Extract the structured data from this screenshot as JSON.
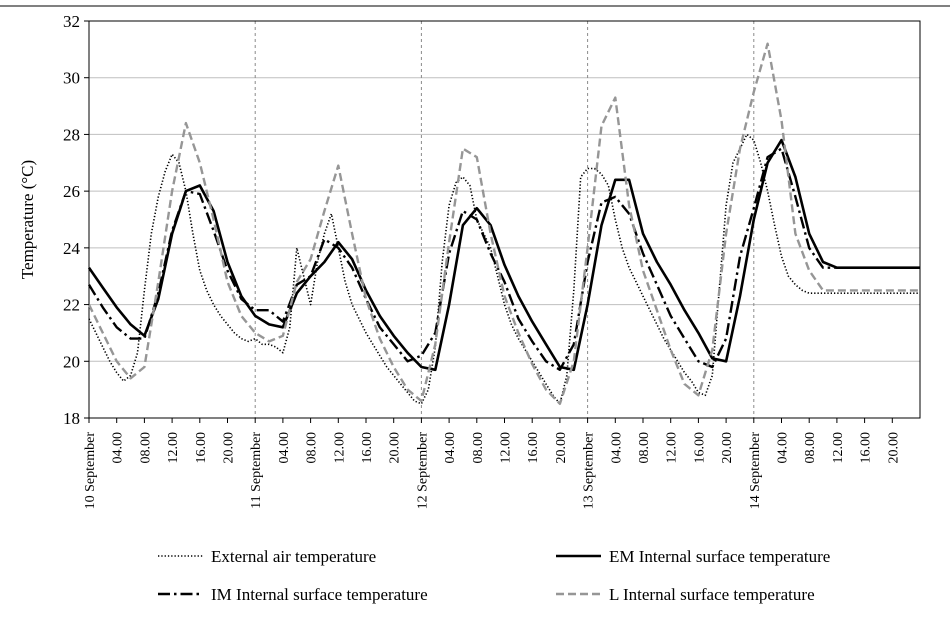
{
  "chart_data": {
    "type": "line",
    "ylabel": "Temperature (°C)",
    "xlabel": "",
    "ylim": [
      18,
      32
    ],
    "yticks": [
      18,
      20,
      22,
      24,
      26,
      28,
      30,
      32
    ],
    "xlim_hours": [
      0,
      120
    ],
    "grid": {
      "horizontal": true,
      "day_separators": "dashed"
    },
    "legend": "bottom",
    "x_tick_labels": [
      "10 September",
      "04.00",
      "08.00",
      "12.00",
      "16.00",
      "20.00",
      "11 September",
      "04.00",
      "08.00",
      "12.00",
      "16.00",
      "20.00",
      "12 September",
      "04.00",
      "08.00",
      "12.00",
      "16.00",
      "20.00",
      "13 September",
      "04.00",
      "08.00",
      "12.00",
      "16.00",
      "20.00",
      "14 September",
      "04.00",
      "08.00",
      "12.00",
      "16.00",
      "20.00"
    ],
    "series": [
      {
        "name": "External air temperature",
        "color": "#000000",
        "style": "dotted",
        "x": [
          0,
          1,
          2,
          3,
          4,
          5,
          6,
          7,
          8,
          9,
          10,
          11,
          12,
          13,
          14,
          15,
          16,
          17,
          18,
          19,
          20,
          21,
          22,
          23,
          24,
          25,
          26,
          27,
          28,
          29,
          30,
          31,
          32,
          33,
          34,
          35,
          36,
          37,
          38,
          39,
          40,
          41,
          42,
          43,
          44,
          45,
          46,
          47,
          48,
          49,
          50,
          51,
          52,
          53,
          54,
          55,
          56,
          57,
          58,
          59,
          60,
          61,
          62,
          63,
          64,
          65,
          66,
          67,
          68,
          69,
          70,
          71,
          72,
          73,
          74,
          75,
          76,
          77,
          78,
          79,
          80,
          81,
          82,
          83,
          84,
          85,
          86,
          87,
          88,
          89,
          90,
          91,
          92,
          93,
          94,
          95,
          96,
          97,
          98,
          99,
          100,
          101,
          102,
          103,
          104,
          105,
          106,
          107,
          108,
          109,
          110,
          111,
          112,
          113,
          114,
          115,
          116,
          117,
          118,
          119,
          120
        ],
        "y": [
          21.5,
          21.0,
          20.5,
          20.0,
          19.6,
          19.3,
          19.5,
          20.3,
          22.5,
          24.5,
          25.8,
          26.7,
          27.3,
          27.0,
          26.0,
          24.5,
          23.2,
          22.5,
          22.0,
          21.6,
          21.3,
          21.0,
          20.8,
          20.7,
          20.8,
          20.6,
          20.6,
          20.5,
          20.3,
          21.2,
          24.0,
          23.0,
          22.0,
          23.5,
          24.5,
          25.2,
          24.0,
          22.8,
          22.0,
          21.5,
          21.0,
          20.6,
          20.2,
          19.8,
          19.5,
          19.2,
          18.9,
          18.6,
          18.5,
          19.0,
          20.5,
          23.5,
          25.5,
          26.3,
          26.5,
          26.2,
          25.0,
          24.5,
          24.0,
          23.0,
          22.0,
          21.3,
          20.8,
          20.4,
          20.0,
          19.6,
          19.2,
          18.8,
          18.5,
          19.5,
          22.5,
          26.5,
          26.8,
          26.8,
          26.6,
          26.2,
          25.0,
          24.0,
          23.3,
          22.8,
          22.3,
          21.8,
          21.3,
          20.8,
          20.4,
          20.0,
          19.6,
          19.3,
          18.9,
          18.8,
          19.5,
          22.5,
          25.5,
          27.0,
          27.5,
          28.0,
          27.8,
          27.0,
          26.0,
          24.8,
          23.7,
          23.0,
          22.7,
          22.5,
          22.4,
          22.4,
          22.4,
          22.4,
          22.4,
          22.4,
          22.4,
          22.4,
          22.4,
          22.4,
          22.4,
          22.4,
          22.4,
          22.4,
          22.4,
          22.4,
          22.4
        ]
      },
      {
        "name": "EM Internal surface temperature",
        "color": "#000000",
        "style": "solid",
        "x": [
          0,
          2,
          4,
          6,
          8,
          10,
          12,
          14,
          16,
          18,
          20,
          22,
          24,
          26,
          28,
          30,
          32,
          34,
          36,
          38,
          40,
          42,
          44,
          46,
          48,
          50,
          52,
          54,
          56,
          58,
          60,
          62,
          64,
          66,
          68,
          70,
          72,
          74,
          76,
          78,
          80,
          82,
          84,
          86,
          88,
          90,
          92,
          94,
          96,
          98,
          100,
          102,
          104,
          106,
          108,
          110,
          112,
          114,
          116,
          118,
          120
        ],
        "y": [
          23.3,
          22.6,
          21.9,
          21.3,
          20.9,
          22.2,
          24.5,
          26.0,
          26.2,
          25.3,
          23.5,
          22.3,
          21.6,
          21.3,
          21.2,
          22.4,
          23.0,
          23.5,
          24.2,
          23.6,
          22.5,
          21.6,
          20.9,
          20.3,
          19.8,
          19.7,
          22.0,
          24.8,
          25.4,
          24.8,
          23.4,
          22.3,
          21.4,
          20.6,
          19.8,
          19.7,
          22.0,
          24.8,
          26.4,
          26.4,
          24.5,
          23.5,
          22.7,
          21.8,
          21.0,
          20.1,
          20.0,
          22.3,
          25.0,
          27.0,
          27.8,
          26.5,
          24.5,
          23.5,
          23.3,
          23.3,
          23.3,
          23.3,
          23.3,
          23.3,
          23.3
        ]
      },
      {
        "name": "IM Internal surface temperature",
        "color": "#000000",
        "style": "dashdot",
        "x": [
          0,
          2,
          4,
          6,
          8,
          10,
          12,
          14,
          16,
          18,
          20,
          22,
          24,
          26,
          28,
          30,
          32,
          34,
          36,
          38,
          40,
          42,
          44,
          46,
          48,
          50,
          52,
          54,
          56,
          58,
          60,
          62,
          64,
          66,
          68,
          70,
          72,
          74,
          76,
          78,
          80,
          82,
          84,
          86,
          88,
          90,
          92,
          94,
          96,
          98,
          100,
          102,
          104,
          106,
          108,
          110,
          112,
          114,
          116,
          118,
          120
        ],
        "y": [
          22.7,
          21.9,
          21.2,
          20.8,
          20.8,
          22.4,
          24.6,
          26.0,
          25.9,
          24.6,
          23.2,
          22.2,
          21.8,
          21.8,
          21.4,
          22.7,
          23.0,
          24.3,
          24.0,
          23.3,
          22.2,
          21.2,
          20.6,
          20.0,
          20.2,
          21.0,
          23.8,
          25.3,
          25.0,
          23.8,
          22.8,
          21.5,
          20.7,
          20.0,
          19.7,
          20.6,
          23.5,
          25.6,
          25.8,
          25.2,
          23.8,
          22.7,
          21.6,
          20.8,
          20.0,
          19.8,
          20.8,
          23.7,
          25.4,
          27.2,
          27.5,
          25.8,
          24.0,
          23.3,
          23.3,
          23.3,
          23.3,
          23.3,
          23.3,
          23.3,
          23.3
        ]
      },
      {
        "name": "L Internal surface temperature",
        "color": "#969696",
        "style": "dashed",
        "x": [
          0,
          2,
          4,
          6,
          8,
          10,
          12,
          14,
          16,
          18,
          20,
          22,
          24,
          26,
          28,
          30,
          32,
          34,
          36,
          38,
          40,
          42,
          44,
          46,
          48,
          50,
          52,
          54,
          56,
          58,
          60,
          62,
          64,
          66,
          68,
          70,
          72,
          74,
          76,
          78,
          80,
          82,
          84,
          86,
          88,
          90,
          92,
          94,
          96,
          98,
          100,
          102,
          104,
          106,
          108,
          110,
          112,
          114,
          116,
          118,
          120
        ],
        "y": [
          22.0,
          21.0,
          20.0,
          19.4,
          19.8,
          22.8,
          26.0,
          28.4,
          27.0,
          25.0,
          22.8,
          21.6,
          21.0,
          20.7,
          20.9,
          22.8,
          23.6,
          25.3,
          26.9,
          24.5,
          22.2,
          20.8,
          19.8,
          19.0,
          18.6,
          20.6,
          24.2,
          27.5,
          27.2,
          24.5,
          22.3,
          21.0,
          19.9,
          19.0,
          18.5,
          20.0,
          24.0,
          28.3,
          29.3,
          25.5,
          23.2,
          21.8,
          20.4,
          19.2,
          18.8,
          20.4,
          24.5,
          27.5,
          29.5,
          31.2,
          28.5,
          24.5,
          23.2,
          22.5,
          22.5,
          22.5,
          22.5,
          22.5,
          22.5,
          22.5,
          22.5
        ]
      }
    ]
  }
}
